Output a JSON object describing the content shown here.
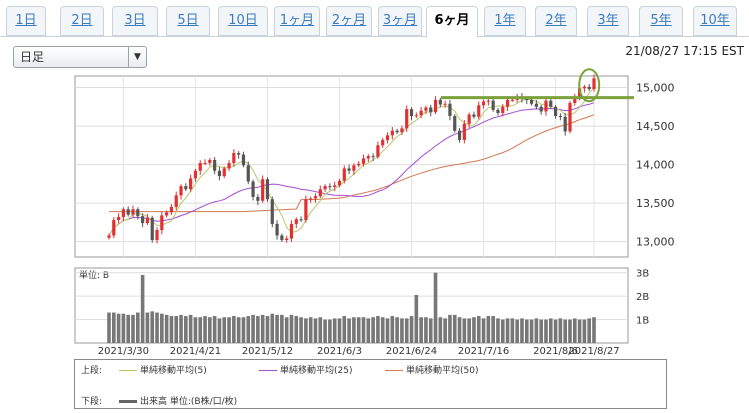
{
  "tabs": [
    {
      "label": "1日",
      "active": false
    },
    {
      "label": "2日",
      "active": false
    },
    {
      "label": "3日",
      "active": false
    },
    {
      "label": "5日",
      "active": false
    },
    {
      "label": "10日",
      "active": false
    },
    {
      "label": "1ヶ月",
      "active": false
    },
    {
      "label": "2ヶ月",
      "active": false
    },
    {
      "label": "3ヶ月",
      "active": false
    },
    {
      "label": "6ヶ月",
      "active": true
    },
    {
      "label": "1年",
      "active": false
    },
    {
      "label": "2年",
      "active": false
    },
    {
      "label": "3年",
      "active": false
    },
    {
      "label": "5年",
      "active": false
    },
    {
      "label": "10年",
      "active": false
    }
  ],
  "period_select": {
    "value": "日足"
  },
  "timestamp": "21/08/27 17:15 EST",
  "volume_unit_label": "単位: B",
  "legend": {
    "upper_label": "上段:",
    "lower_label": "下段:",
    "ma5": "単純移動平均(5)",
    "ma25": "単純移動平均(25)",
    "ma50": "単純移動平均(50)",
    "volume": "出来高 単位:(B株/口/枚)"
  },
  "colors": {
    "up": "#e03030",
    "down": "#555555",
    "ma5": "#b5c96a",
    "ma25": "#a64ccf",
    "ma50": "#d2784e",
    "volume": "#777777",
    "highlight": "#7aa13a"
  },
  "chart_data": {
    "type": "candlestick",
    "x_tick_labels": [
      "2021/3/30",
      "2021/4/21",
      "2021/5/12",
      "2021/6/3",
      "2021/6/24",
      "2021/7/16",
      "2021/8/6",
      "2021/8/27"
    ],
    "price_axis": {
      "ticks": [
        13000,
        13500,
        14000,
        14500,
        15000
      ],
      "ylim": [
        12800,
        15150
      ]
    },
    "volume_axis": {
      "ticks": [
        "1B",
        "2B",
        "3B"
      ],
      "ylim": [
        0,
        3.2
      ]
    },
    "ma_line": {
      "values": [
        13030,
        13080,
        13110,
        13210,
        13350,
        13500,
        13680,
        13850,
        13960,
        13990,
        14030,
        14000,
        13900,
        13700,
        13600,
        13350,
        13000,
        13150,
        13380,
        13500,
        13560,
        13680,
        13880,
        14100,
        14200,
        14500,
        14700,
        14750,
        14790,
        14830,
        14900,
        15080
      ]
    },
    "highlight_level": 14870,
    "price": [
      13080,
      13280,
      13320,
      13420,
      13350,
      13420,
      13330,
      13240,
      13310,
      13020,
      13150,
      13340,
      13380,
      13450,
      13600,
      13720,
      13680,
      13820,
      13920,
      14020,
      14020,
      14060,
      13920,
      13850,
      13950,
      14020,
      14150,
      14130,
      13990,
      13780,
      13580,
      13530,
      13810,
      13550,
      13230,
      13080,
      13020,
      13040,
      13230,
      13290,
      13280,
      13550,
      13560,
      13590,
      13680,
      13720,
      13710,
      13730,
      13790,
      13950,
      13920,
      13990,
      14010,
      14080,
      14110,
      14100,
      14250,
      14320,
      14380,
      14440,
      14420,
      14470,
      14720,
      14630,
      14640,
      14700,
      14740,
      14680,
      14840,
      14780,
      14790,
      14630,
      14440,
      14320,
      14530,
      14650,
      14620,
      14770,
      14820,
      14830,
      14710,
      14670,
      14750,
      14840,
      14840,
      14880,
      14850,
      14840,
      14790,
      14750,
      14690,
      14830,
      14750,
      14630,
      14620,
      14430,
      14800,
      14880,
      14990,
      15010,
      14980,
      15120
    ],
    "volume": [
      1.3,
      1.3,
      1.25,
      1.25,
      1.2,
      1.2,
      1.3,
      2.9,
      1.3,
      1.35,
      1.3,
      1.25,
      1.2,
      1.15,
      1.15,
      1.2,
      1.15,
      1.2,
      1.1,
      1.1,
      1.15,
      1.1,
      1.15,
      1.05,
      1.1,
      1.1,
      1.15,
      1.1,
      1.1,
      1.15,
      1.2,
      1.15,
      1.2,
      1.15,
      1.25,
      1.2,
      1.2,
      1.1,
      1.2,
      1.15,
      1.1,
      1.05,
      1.1,
      1.05,
      1.1,
      1.0,
      1.0,
      1.05,
      1.05,
      1.15,
      1.05,
      1.1,
      1.1,
      1.1,
      1.05,
      1.1,
      1.15,
      1.1,
      1.05,
      1.15,
      1.1,
      1.05,
      1.05,
      1.15,
      2.05,
      1.1,
      1.1,
      1.05,
      3.0,
      1.1,
      1.05,
      1.2,
      1.2,
      1.1,
      1.05,
      1.05,
      1.1,
      1.15,
      1.05,
      1.15,
      1.15,
      1.05,
      1.0,
      1.05,
      1.05,
      1.0,
      1.05,
      1.0,
      1.0,
      1.05,
      1.0,
      1.0,
      1.05,
      1.0,
      1.05,
      1.0,
      1.0,
      1.05,
      1.0,
      1.0,
      1.05,
      1.1
    ]
  }
}
